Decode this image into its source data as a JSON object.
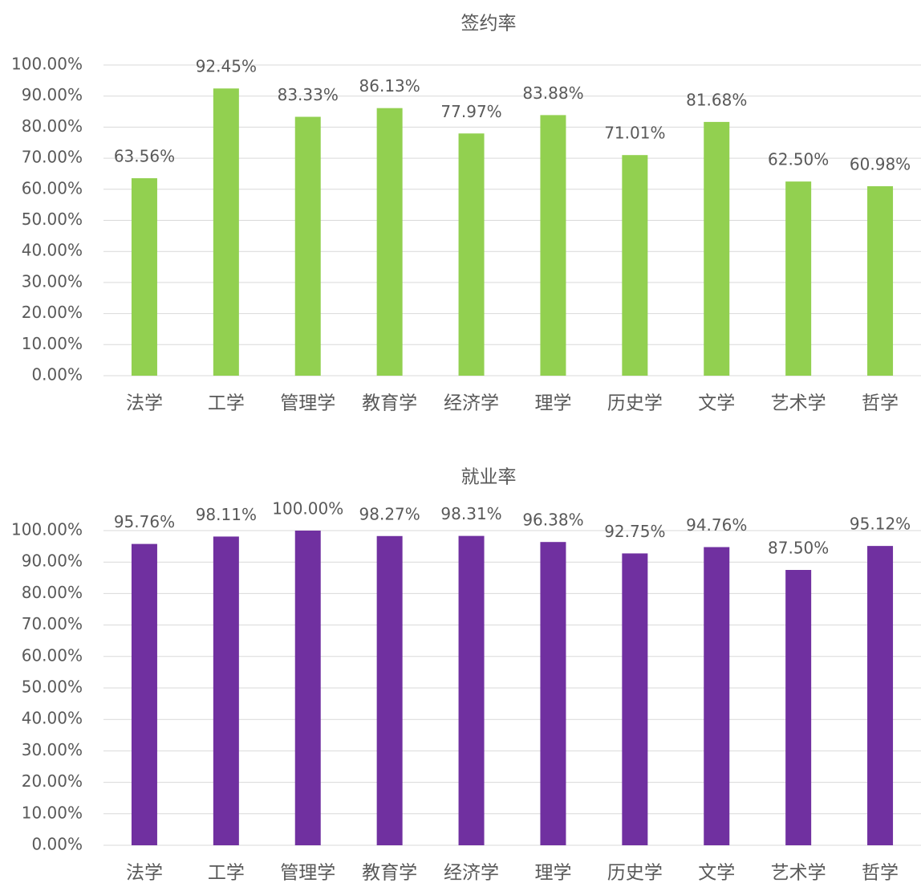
{
  "chart_data": [
    {
      "type": "bar",
      "title": "签约率",
      "categories": [
        "法学",
        "工学",
        "管理学",
        "教育学",
        "经济学",
        "理学",
        "历史学",
        "文学",
        "艺术学",
        "哲学"
      ],
      "values": [
        63.56,
        92.45,
        83.33,
        86.13,
        77.97,
        83.88,
        71.01,
        81.68,
        62.5,
        60.98
      ],
      "value_labels": [
        "63.56%",
        "92.45%",
        "83.33%",
        "86.13%",
        "77.97%",
        "83.88%",
        "71.01%",
        "81.68%",
        "62.50%",
        "60.98%"
      ],
      "color": "#92d050",
      "ylim": [
        0,
        100
      ],
      "yticks": [
        {
          "value": 0,
          "label": "0.00%"
        },
        {
          "value": 10,
          "label": "10.00%"
        },
        {
          "value": 20,
          "label": "20.00%"
        },
        {
          "value": 30,
          "label": "30.00%"
        },
        {
          "value": 40,
          "label": "40.00%"
        },
        {
          "value": 50,
          "label": "50.00%"
        },
        {
          "value": 60,
          "label": "60.00%"
        },
        {
          "value": 70,
          "label": "70.00%"
        },
        {
          "value": 80,
          "label": "80.00%"
        },
        {
          "value": 90,
          "label": "90.00%"
        },
        {
          "value": 100,
          "label": "100.00%"
        }
      ],
      "grid": true
    },
    {
      "type": "bar",
      "title": "就业率",
      "categories": [
        "法学",
        "工学",
        "管理学",
        "教育学",
        "经济学",
        "理学",
        "历史学",
        "文学",
        "艺术学",
        "哲学"
      ],
      "values": [
        95.76,
        98.11,
        100.0,
        98.27,
        98.31,
        96.38,
        92.75,
        94.76,
        87.5,
        95.12
      ],
      "value_labels": [
        "95.76%",
        "98.11%",
        "100.00%",
        "98.27%",
        "98.31%",
        "96.38%",
        "92.75%",
        "94.76%",
        "87.50%",
        "95.12%"
      ],
      "color": "#7030a0",
      "ylim": [
        0,
        100
      ],
      "yticks": [
        {
          "value": 0,
          "label": "0.00%"
        },
        {
          "value": 10,
          "label": "10.00%"
        },
        {
          "value": 20,
          "label": "20.00%"
        },
        {
          "value": 30,
          "label": "30.00%"
        },
        {
          "value": 40,
          "label": "40.00%"
        },
        {
          "value": 50,
          "label": "50.00%"
        },
        {
          "value": 60,
          "label": "60.00%"
        },
        {
          "value": 70,
          "label": "70.00%"
        },
        {
          "value": 80,
          "label": "80.00%"
        },
        {
          "value": 90,
          "label": "90.00%"
        },
        {
          "value": 100,
          "label": "100.00%"
        }
      ],
      "grid": true
    }
  ]
}
